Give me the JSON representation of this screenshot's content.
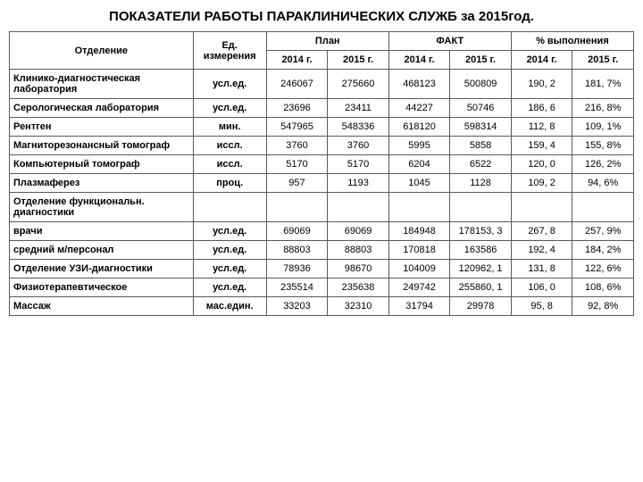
{
  "title": "ПОКАЗАТЕЛИ РАБОТЫ ПАРАКЛИНИЧЕСКИХ СЛУЖБ за 2015год.",
  "headers": {
    "dept": "Отделение",
    "unit": "Ед. измерения",
    "plan": "План",
    "fact": "ФАКТ",
    "pct": "% выполнения",
    "y2014": "2014 г.",
    "y2015": "2015 г."
  },
  "rows": [
    {
      "label": "Клинико-диагностическая лаборатория",
      "unit": "усл.ед.",
      "p14": "246067",
      "p15": "275660",
      "f14": "468123",
      "f15": "500809",
      "v14": "190, 2",
      "v15": "181, 7%"
    },
    {
      "label": "Серологическая лаборатория",
      "unit": "усл.ед.",
      "p14": "23696",
      "p15": "23411",
      "f14": "44227",
      "f15": "50746",
      "v14": "186, 6",
      "v15": "216, 8%"
    },
    {
      "label": "Рентген",
      "unit": "мин.",
      "p14": "547965",
      "p15": "548336",
      "f14": "618120",
      "f15": "598314",
      "v14": "112, 8",
      "v15": "109, 1%"
    },
    {
      "label": "Магниторезонансный томограф",
      "unit": "иссл.",
      "p14": "3760",
      "p15": "3760",
      "f14": "5995",
      "f15": "5858",
      "v14": "159, 4",
      "v15": "155, 8%"
    },
    {
      "label": "Компьютерный томограф",
      "unit": "иссл.",
      "p14": "5170",
      "p15": "5170",
      "f14": "6204",
      "f15": "6522",
      "v14": "120, 0",
      "v15": "126, 2%"
    },
    {
      "label": "Плазмаферез",
      "unit": "проц.",
      "p14": "957",
      "p15": "1193",
      "f14": "1045",
      "f15": "1128",
      "v14": "109, 2",
      "v15": "94, 6%"
    },
    {
      "label": "Отделение функциональн. диагностики",
      "unit": "",
      "p14": "",
      "p15": "",
      "f14": "",
      "f15": "",
      "v14": "",
      "v15": "",
      "section": true
    },
    {
      "label": "врачи",
      "unit": "усл.ед.",
      "p14": "69069",
      "p15": "69069",
      "f14": "184948",
      "f15": "178153, 3",
      "v14": "267, 8",
      "v15": "257, 9%"
    },
    {
      "label": "средний м/персонал",
      "unit": "усл.ед.",
      "p14": "88803",
      "p15": "88803",
      "f14": "170818",
      "f15": "163586",
      "v14": "192, 4",
      "v15": "184, 2%"
    },
    {
      "label": "Отделение УЗИ-диагностики",
      "unit": "усл.ед.",
      "p14": "78936",
      "p15": "98670",
      "f14": "104009",
      "f15": "120962, 1",
      "v14": "131, 8",
      "v15": "122, 6%"
    },
    {
      "label": "Физиотерапевтическое",
      "unit": "усл.ед.",
      "p14": "235514",
      "p15": "235638",
      "f14": "249742",
      "f15": "255860, 1",
      "v14": "106, 0",
      "v15": "108, 6%"
    },
    {
      "label": "Массаж",
      "unit": "мас.един.",
      "p14": "33203",
      "p15": "32310",
      "f14": "31794",
      "f15": "29978",
      "v14": "95, 8",
      "v15": "92, 8%"
    }
  ],
  "style": {
    "border_color": "#595959",
    "header_bg": "#ffffff",
    "cell_bg": "#ffffff",
    "text_color": "#000000",
    "font_family": "Arial",
    "title_fontsize": 15,
    "body_fontsize": 11
  }
}
